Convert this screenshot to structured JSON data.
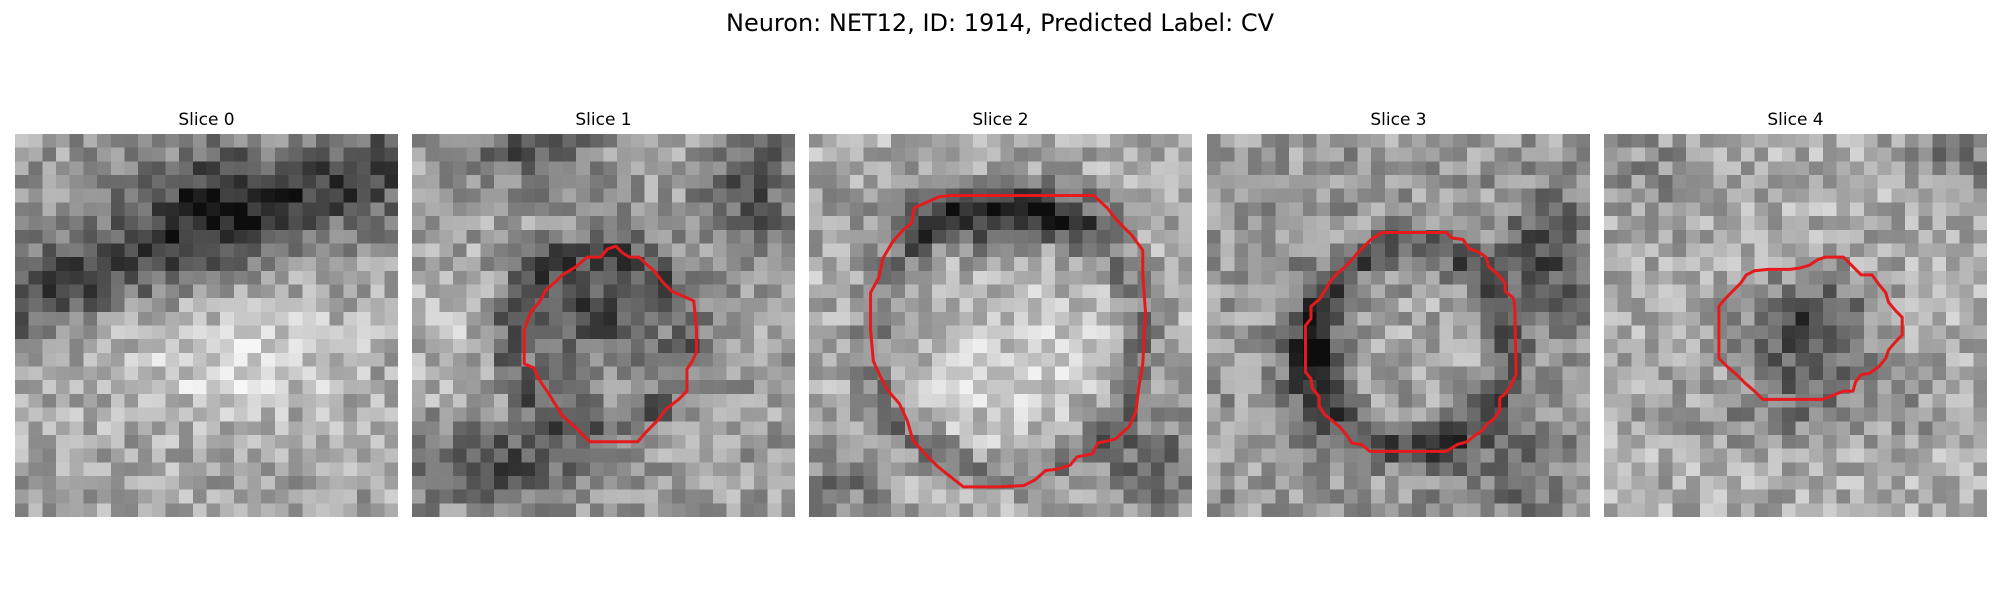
{
  "figure": {
    "title": "Neuron: NET12, ID: 1914, Predicted Label: CV"
  },
  "contour_color": "#e41a1c",
  "colormap": "gray",
  "slices": [
    {
      "title": "Slice 0",
      "has_contour": false
    },
    {
      "title": "Slice 1",
      "has_contour": true
    },
    {
      "title": "Slice 2",
      "has_contour": true
    },
    {
      "title": "Slice 3",
      "has_contour": true
    },
    {
      "title": "Slice 4",
      "has_contour": true
    }
  ]
}
